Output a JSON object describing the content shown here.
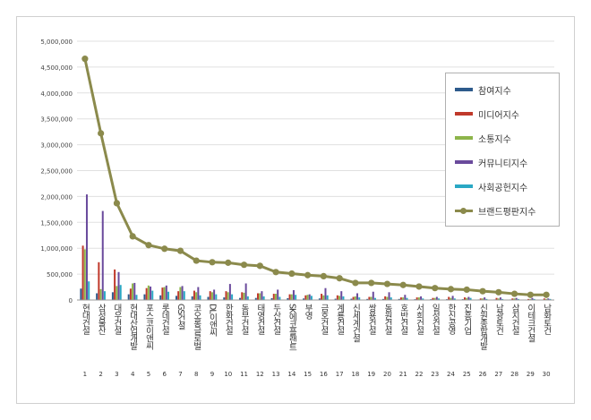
{
  "chart_data": {
    "type": "bar",
    "title": "",
    "xlabel": "",
    "ylabel": "",
    "ylim": [
      0,
      5000000
    ],
    "yticks": [
      "0",
      "500,000",
      "1,000,000",
      "1,500,000",
      "2,000,000",
      "2,500,000",
      "3,000,000",
      "3,500,000",
      "4,000,000",
      "4,500,000",
      "5,000,000"
    ],
    "grid": true,
    "legend_position": "right",
    "categories": [
      "현대건설",
      "삼성물산",
      "대우건설",
      "현대산업개발",
      "포스코이앤씨",
      "롯데건설",
      "GS건설",
      "코오롱글로벌",
      "DL이앤씨",
      "한화건설",
      "동부건설",
      "태영건설",
      "두산건설",
      "SK에코플랜트",
      "부영",
      "금호건설",
      "계룡건설",
      "신세계건설",
      "쌍용건설",
      "동원건설",
      "호반건설",
      "서희건설",
      "일성건설",
      "한신공영",
      "진흥기업",
      "신원종합개발",
      "남광토건",
      "삼지건설",
      "이테크건설",
      "남화토건"
    ],
    "ranks": [
      "1",
      "2",
      "3",
      "4",
      "5",
      "6",
      "7",
      "8",
      "9",
      "10",
      "11",
      "12",
      "13",
      "14",
      "15",
      "16",
      "17",
      "18",
      "19",
      "20",
      "21",
      "22",
      "23",
      "24",
      "25",
      "26",
      "27",
      "28",
      "29",
      "30"
    ],
    "series": [
      {
        "name": "참여지수",
        "kind": "bar",
        "color": "#2e5b8c",
        "values": [
          220000,
          130000,
          150000,
          110000,
          110000,
          90000,
          80000,
          70000,
          60000,
          50000,
          40000,
          40000,
          35000,
          35000,
          30000,
          30000,
          25000,
          25000,
          20000,
          20000,
          20000,
          15000,
          15000,
          15000,
          15000,
          10000,
          10000,
          10000,
          8000,
          8000
        ]
      },
      {
        "name": "미디어지수",
        "kind": "bar",
        "color": "#c0392b",
        "values": [
          1050000,
          730000,
          590000,
          220000,
          230000,
          240000,
          170000,
          180000,
          170000,
          170000,
          150000,
          130000,
          120000,
          110000,
          90000,
          120000,
          90000,
          60000,
          60000,
          70000,
          50000,
          50000,
          40000,
          60000,
          50000,
          30000,
          40000,
          30000,
          20000,
          30000
        ]
      },
      {
        "name": "소통지수",
        "kind": "bar",
        "color": "#8db54a",
        "values": [
          980000,
          210000,
          270000,
          320000,
          280000,
          250000,
          250000,
          150000,
          150000,
          150000,
          140000,
          130000,
          120000,
          110000,
          100000,
          90000,
          80000,
          70000,
          60000,
          60000,
          50000,
          50000,
          40000,
          40000,
          40000,
          30000,
          30000,
          30000,
          20000,
          20000
        ]
      },
      {
        "name": "커뮤니티지수",
        "kind": "bar",
        "color": "#6a4a9c",
        "values": [
          2040000,
          1720000,
          540000,
          330000,
          260000,
          280000,
          270000,
          250000,
          200000,
          310000,
          320000,
          170000,
          200000,
          190000,
          110000,
          230000,
          170000,
          130000,
          160000,
          150000,
          100000,
          70000,
          60000,
          80000,
          60000,
          50000,
          50000,
          40000,
          40000,
          30000
        ]
      },
      {
        "name": "사회공헌지수",
        "kind": "bar",
        "color": "#2aa8c4",
        "values": [
          360000,
          170000,
          290000,
          100000,
          180000,
          160000,
          170000,
          90000,
          110000,
          110000,
          70000,
          70000,
          60000,
          100000,
          80000,
          90000,
          70000,
          50000,
          40000,
          50000,
          40000,
          30000,
          30000,
          30000,
          40000,
          20000,
          20000,
          20000,
          20000,
          20000
        ]
      },
      {
        "name": "브랜드평판지수",
        "kind": "line",
        "color": "#8b8a4c",
        "values": [
          4660000,
          3220000,
          1870000,
          1230000,
          1060000,
          990000,
          950000,
          760000,
          730000,
          720000,
          680000,
          660000,
          540000,
          510000,
          480000,
          460000,
          420000,
          330000,
          330000,
          310000,
          290000,
          260000,
          230000,
          210000,
          200000,
          170000,
          150000,
          120000,
          100000,
          100000
        ]
      }
    ]
  }
}
